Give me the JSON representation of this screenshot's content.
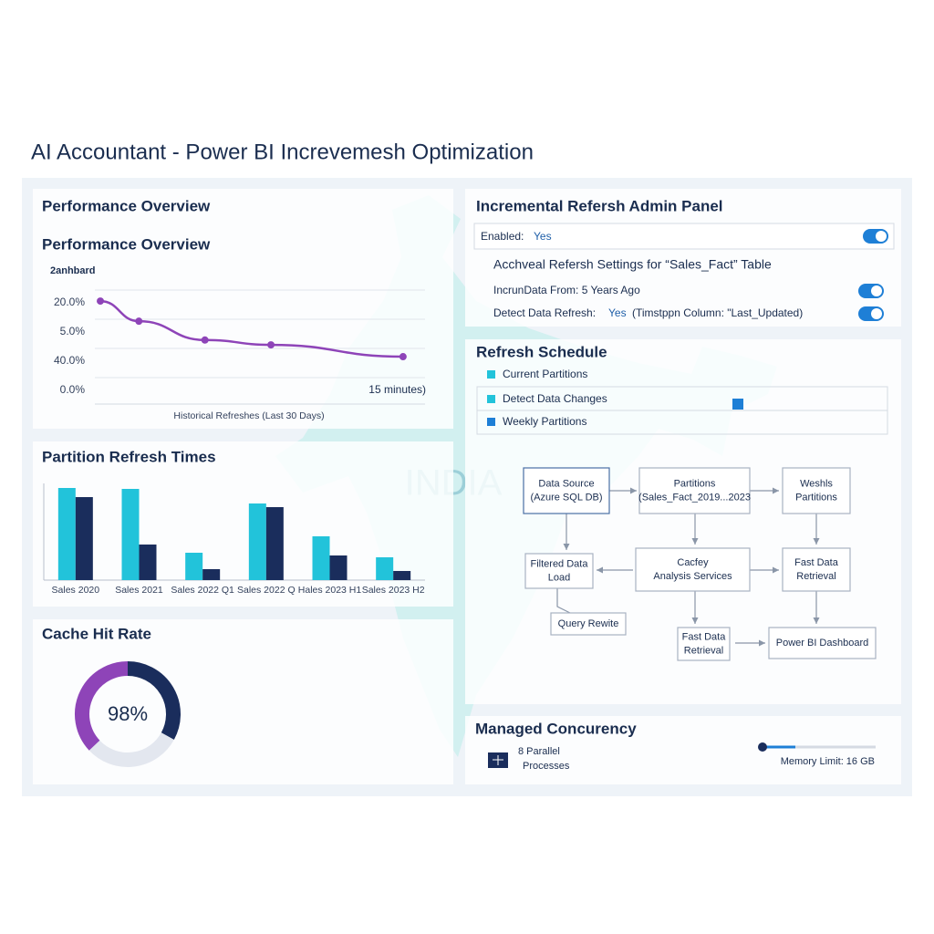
{
  "header": {
    "title": "AI Accountant - Power BI Increvemesh Optimization"
  },
  "map_label": "INDIA",
  "performance": {
    "panel_title": "Performance Overview"
  },
  "chart_data": [
    {
      "type": "line",
      "title": "Performance Overview",
      "subtitle": "2anhbard",
      "x_label": "Historical Refreshes (Last 30 Days)",
      "annotation": "15 minutes)",
      "y_labels": [
        "20.0%",
        "5.0%",
        "40.0%",
        "0.0%"
      ],
      "ylim": [
        0,
        20
      ],
      "xlim": [
        0,
        30
      ],
      "x": [
        0.5,
        4,
        10,
        16,
        28
      ],
      "values": [
        20.4,
        15.8,
        11.5,
        10.4,
        7.7
      ],
      "color": "#8e44b8"
    },
    {
      "type": "bar",
      "title": "Partition Refresh Times",
      "categories": [
        "Sales 2020",
        "Sales 2021",
        "Sales 2022 Q1",
        "Sales 2022 Q",
        "Hales 2023 H1",
        "Sales 2023 H2"
      ],
      "ylim": [
        0,
        105
      ],
      "series": [
        {
          "color": "#22c3da",
          "values": [
            101,
            100,
            30,
            84,
            48,
            25
          ]
        },
        {
          "color": "#1a2d5c",
          "values": [
            91,
            39,
            12,
            80,
            27,
            10
          ]
        }
      ]
    },
    {
      "type": "donut",
      "title": "Cache Hit Rate",
      "center_label": "98%",
      "values": [
        33,
        30,
        37
      ],
      "colors": [
        "#1a2d5c",
        "#e3e7ef",
        "#8e44b8"
      ]
    }
  ],
  "admin": {
    "title": "Incremental Refersh Admin Panel",
    "enabled_label": "Enabled:",
    "enabled_value": "Yes",
    "settings_title": "Acchveal Refersh Settings for “Sales_Fact” Table",
    "range_label": "IncrunData From: 5 Years Ago",
    "detect_label": "Detect Data Refresh:",
    "detect_value": "Yes",
    "detect_note": "(Timstppn Column: \"Last_Updated)"
  },
  "schedule": {
    "title": "Refresh Schedule",
    "items": [
      "Current Partitions",
      "Detect Data Changes",
      "Weekly Partitions"
    ]
  },
  "flow": {
    "nodes": [
      {
        "lines": [
          "Data Source",
          "(Azure SQL DB)"
        ]
      },
      {
        "lines": [
          "Partitions",
          "(Sales_Fact_2019...2023"
        ]
      },
      {
        "lines": [
          "Weshls",
          "Partitions"
        ]
      },
      {
        "lines": [
          "Filtered Data",
          "Load"
        ]
      },
      {
        "lines": [
          "Cacfey",
          "Analysis Services"
        ]
      },
      {
        "lines": [
          "Fast Data",
          "Retrieval"
        ]
      },
      {
        "lines": [
          "Query Rewite"
        ]
      },
      {
        "lines": [
          "Fast Data",
          "Retrieval"
        ]
      },
      {
        "lines": [
          "Power BI Dashboard"
        ]
      }
    ]
  },
  "concurrency": {
    "title": "Managed Concurency",
    "processes": [
      "8 Parallel",
      "Processes"
    ],
    "memory_label": "Memory Limit: 16 GB"
  }
}
